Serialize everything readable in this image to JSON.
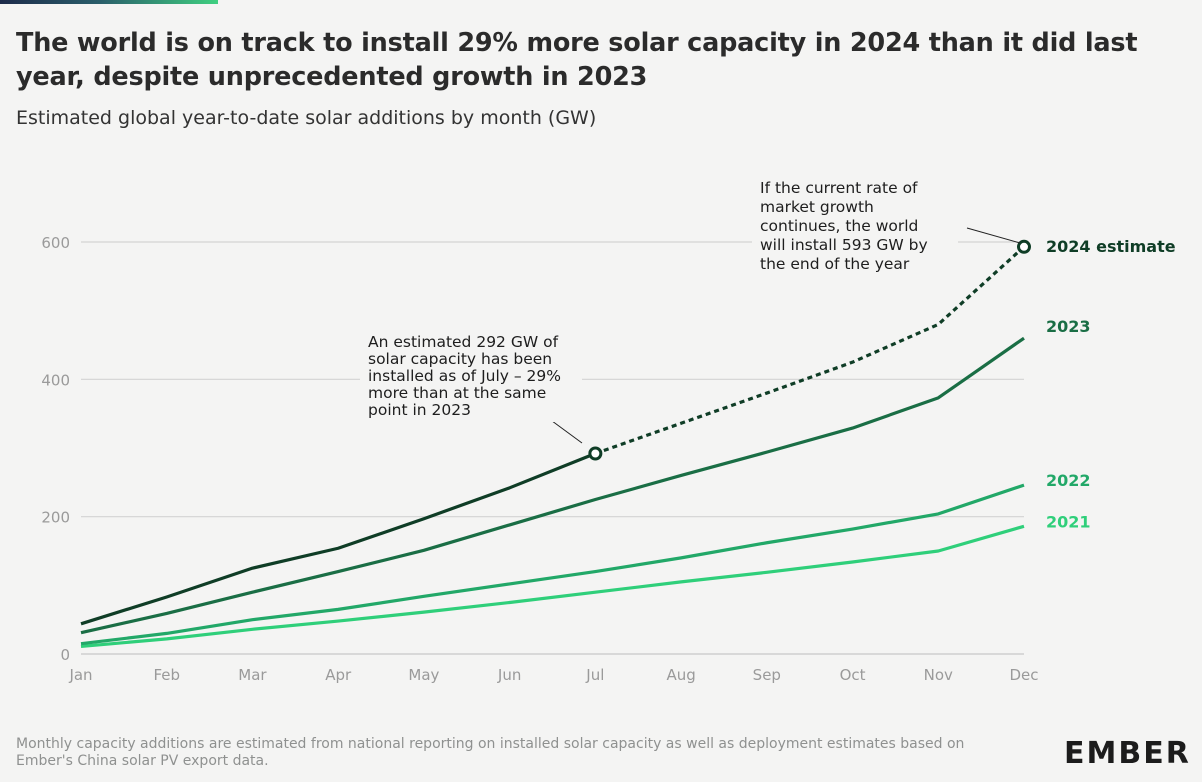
{
  "header": {
    "title": "The world is on track to install 29% more solar capacity in 2024 than it did last year, despite unprecedented growth in 2023",
    "subtitle": "Estimated global year-to-date solar additions by month (GW)"
  },
  "footer": {
    "note": "Monthly capacity additions are estimated from national reporting on installed solar capacity as well as deployment estimates based on Ember's China solar PV export data.",
    "logo_text": "EMBER"
  },
  "chart_data": {
    "type": "line",
    "title": "The world is on track to install 29% more solar capacity in 2024 than it did last year, despite unprecedented growth in 2023",
    "subtitle": "Estimated global year-to-date solar additions by month (GW)",
    "categories": [
      "Jan",
      "Feb",
      "Mar",
      "Apr",
      "May",
      "Jun",
      "Jul",
      "Aug",
      "Sep",
      "Oct",
      "Nov",
      "Dec"
    ],
    "ylim": [
      0,
      600
    ],
    "yticks": [
      0,
      200,
      400,
      600
    ],
    "grid": true,
    "series": [
      {
        "name": "2021",
        "label": "2021",
        "color": "#2fcf7a",
        "style": "solid",
        "values": [
          11,
          22,
          36,
          48,
          61,
          75,
          90,
          105,
          119,
          134,
          150,
          186
        ]
      },
      {
        "name": "2022",
        "label": "2022",
        "color": "#22a868",
        "style": "solid",
        "values": [
          15,
          30,
          50,
          65,
          84,
          102,
          120,
          140,
          162,
          182,
          204,
          246
        ]
      },
      {
        "name": "2023",
        "label": "2023",
        "color": "#1a6e45",
        "style": "solid",
        "values": [
          31,
          59,
          90,
          120,
          151,
          188,
          225,
          260,
          294,
          329,
          373,
          460
        ]
      },
      {
        "name": "2024",
        "label": "2024 estimate",
        "color": "#0f3d26",
        "style": "solid-then-dashed",
        "values": [
          44,
          83,
          125,
          154,
          197,
          242,
          292,
          336,
          380,
          425,
          480,
          593
        ],
        "actual_until": "Jul"
      }
    ],
    "annotations": [
      {
        "id": "jul",
        "target_month": "Jul",
        "target_value": 292,
        "lines": [
          "An estimated 292 GW of",
          "solar capacity has been",
          "installed as of July – 29%",
          "more than at the same",
          "point in 2023"
        ]
      },
      {
        "id": "dec",
        "target_month": "Dec",
        "target_value": 593,
        "lines": [
          "If the current rate of",
          "market growth",
          "continues, the world",
          "will install 593 GW by",
          "the end of the year"
        ]
      }
    ]
  }
}
